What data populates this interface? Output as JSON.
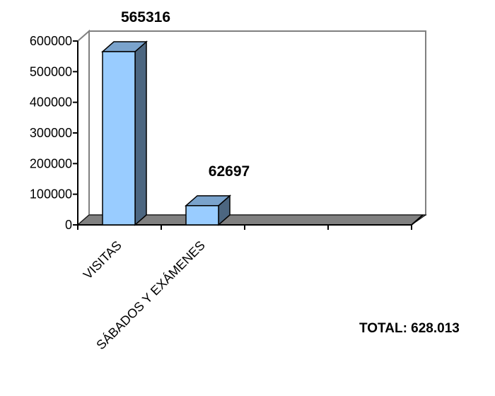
{
  "chart_data": {
    "type": "bar",
    "title": "",
    "xlabel": "",
    "ylabel": "",
    "categories": [
      "VISITAS",
      "SÁBADOS Y EXÁMENES",
      "",
      ""
    ],
    "values": [
      565316,
      62697,
      null,
      null
    ],
    "data_labels": [
      "565316",
      "62697",
      "",
      ""
    ],
    "ylim": [
      0,
      600000
    ],
    "y_ticks": [
      0,
      100000,
      200000,
      300000,
      400000,
      500000,
      600000
    ],
    "y_tick_labels": [
      "0",
      "100000",
      "200000",
      "300000",
      "400000",
      "500000",
      "600000"
    ],
    "grid": false,
    "legend": "none",
    "style": "3d-column",
    "annotation": "TOTAL: 628.013",
    "colors": {
      "bar_front": "#99ccff",
      "bar_top": "#7aa3cc",
      "bar_side": "#4c6680",
      "floor": "#808080",
      "frame": "#808080",
      "axis": "#000000",
      "background": "#ffffff"
    }
  }
}
